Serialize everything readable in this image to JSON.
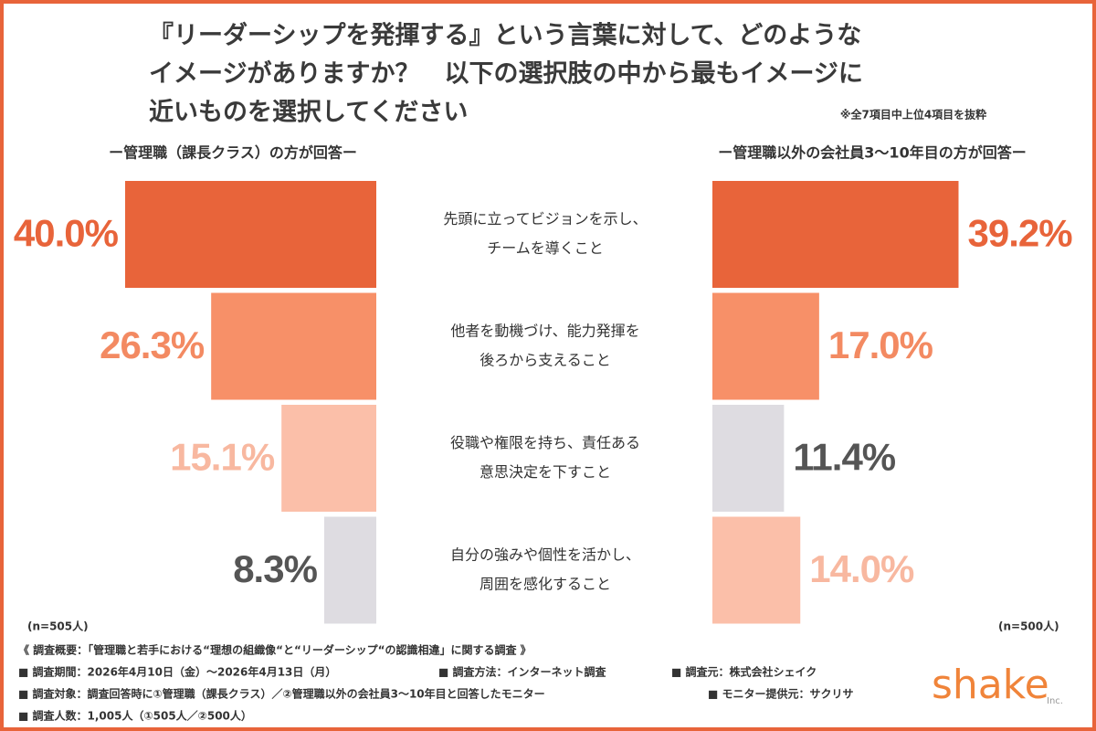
{
  "chart_data": {
    "type": "butterfly",
    "title": [
      "『リーダーシップを発揮する』という言葉に対して、どのような",
      "イメージがありますか？　以下の選択肢の中から最もイメージに",
      "近いものを選択してください"
    ],
    "note": "※全7項目中上位4項目を抜粋",
    "categories": [
      [
        "先頭に立ってビジョンを示し、",
        "チームを導くこと"
      ],
      [
        "他者を動機づけ、能力発揮を",
        "後ろから支えること"
      ],
      [
        "役職や権限を持ち、責任ある",
        "意思決定を下すこと"
      ],
      [
        "自分の強みや個性を活かし、",
        "周囲を感化すること"
      ]
    ],
    "series": [
      {
        "name": "ー管理職（課長クラス）の方が回答ー",
        "sample": "(n=505人)",
        "values": [
          40.0,
          26.3,
          15.1,
          8.3
        ],
        "value_labels": [
          "40.0%",
          "26.3%",
          "15.1%",
          "8.3%"
        ],
        "colors": [
          "#e8643a",
          "#f79068",
          "#fbbfa9",
          "#dedce1"
        ],
        "label_colors": [
          "#e8643a",
          "#f38a62",
          "#f8b8a0",
          "#555555"
        ]
      },
      {
        "name": "ー管理職以外の会社員3〜10年目の方が回答ー",
        "sample": "(n=500人)",
        "values": [
          39.2,
          17.0,
          11.4,
          14.0
        ],
        "value_labels": [
          "39.2%",
          "17.0%",
          "11.4%",
          "14.0%"
        ],
        "colors": [
          "#e8643a",
          "#f79068",
          "#dedce1",
          "#fbbfa9"
        ],
        "label_colors": [
          "#e8643a",
          "#f38a62",
          "#555555",
          "#f8b8a0"
        ]
      }
    ]
  },
  "footer": {
    "lines": [
      [
        "《 調査概要：「管理職と若手における“理想の組織像“と“リーダーシップ“の認識相違」に関する調査 》"
      ],
      [
        "■ 調査期間：2026年4月10日（金）〜2026年4月13日（月）",
        "■ 調査方法：インターネット調査",
        "■ 調査元：株式会社シェイク"
      ],
      [
        "■ 調査対象：調査回答時に①管理職（課長クラス）／②管理職以外の会社員3〜10年目と回答したモニター",
        "■ モニター提供元：サクリサ"
      ],
      [
        "■ 調査人数：1,005人（①505人／②500人）"
      ]
    ],
    "logo": "shake",
    "logo_suffix": "Inc."
  }
}
